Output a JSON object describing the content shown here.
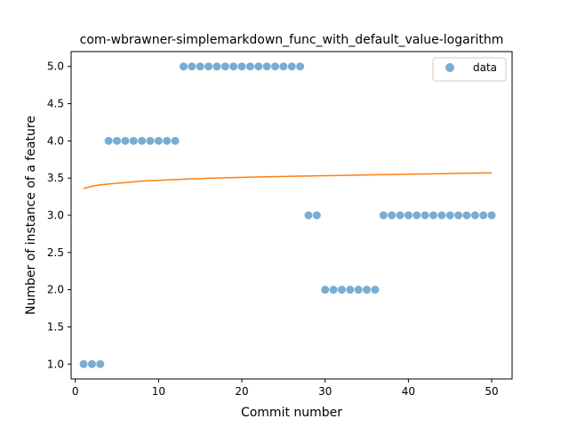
{
  "chart_data": {
    "type": "scatter",
    "title": "com-wbrawner-simplemarkdown_func_with_default_value-logarithm",
    "xlabel": "Commit number",
    "ylabel": "Number of instance of a feature",
    "xlim": [
      -0.5,
      52.45
    ],
    "ylim": [
      0.8,
      5.2
    ],
    "xticks": [
      0,
      10,
      20,
      30,
      40,
      50
    ],
    "xtick_labels": [
      "0",
      "10",
      "20",
      "30",
      "40",
      "50"
    ],
    "yticks": [
      1.0,
      1.5,
      2.0,
      2.5,
      3.0,
      3.5,
      4.0,
      4.5,
      5.0
    ],
    "ytick_labels": [
      "1.0",
      "1.5",
      "2.0",
      "2.5",
      "3.0",
      "3.5",
      "4.0",
      "4.5",
      "5.0"
    ],
    "grid": false,
    "legend_position": "top-right",
    "legend": [
      "data"
    ],
    "series": [
      {
        "name": "data",
        "kind": "scatter",
        "color": "#1f77b4",
        "x": [
          1,
          2,
          3,
          4,
          5,
          6,
          7,
          8,
          9,
          10,
          11,
          12,
          13,
          14,
          15,
          16,
          17,
          18,
          19,
          20,
          21,
          22,
          23,
          24,
          25,
          26,
          27,
          28,
          29,
          30,
          31,
          32,
          33,
          34,
          35,
          36,
          37,
          38,
          39,
          40,
          41,
          42,
          43,
          44,
          45,
          46,
          47,
          48,
          49,
          50
        ],
        "y": [
          1,
          1,
          1,
          4,
          4,
          4,
          4,
          4,
          4,
          4,
          4,
          4,
          5,
          5,
          5,
          5,
          5,
          5,
          5,
          5,
          5,
          5,
          5,
          5,
          5,
          5,
          5,
          3,
          3,
          2,
          2,
          2,
          2,
          2,
          2,
          2,
          3,
          3,
          3,
          3,
          3,
          3,
          3,
          3,
          3,
          3,
          3,
          3,
          3,
          3
        ]
      },
      {
        "kind": "line",
        "color": "#ff7f0e",
        "x": [
          1,
          2,
          3,
          4,
          5,
          6,
          7,
          8,
          9,
          10,
          11,
          12,
          13,
          14,
          15,
          16,
          17,
          18,
          19,
          20,
          21,
          22,
          23,
          24,
          25,
          26,
          27,
          28,
          29,
          30,
          31,
          32,
          33,
          34,
          35,
          36,
          37,
          38,
          39,
          40,
          41,
          42,
          43,
          44,
          45,
          46,
          47,
          48,
          49,
          50
        ],
        "y": [
          3.36,
          3.39,
          3.41,
          3.42,
          3.43,
          3.44,
          3.45,
          3.46,
          3.465,
          3.47,
          3.475,
          3.48,
          3.485,
          3.49,
          3.493,
          3.497,
          3.5,
          3.503,
          3.506,
          3.509,
          3.512,
          3.515,
          3.517,
          3.52,
          3.522,
          3.524,
          3.526,
          3.528,
          3.53,
          3.532,
          3.534,
          3.536,
          3.538,
          3.54,
          3.542,
          3.544,
          3.546,
          3.548,
          3.55,
          3.552,
          3.554,
          3.556,
          3.558,
          3.559,
          3.561,
          3.563,
          3.565,
          3.567,
          3.569,
          3.57
        ]
      }
    ]
  }
}
